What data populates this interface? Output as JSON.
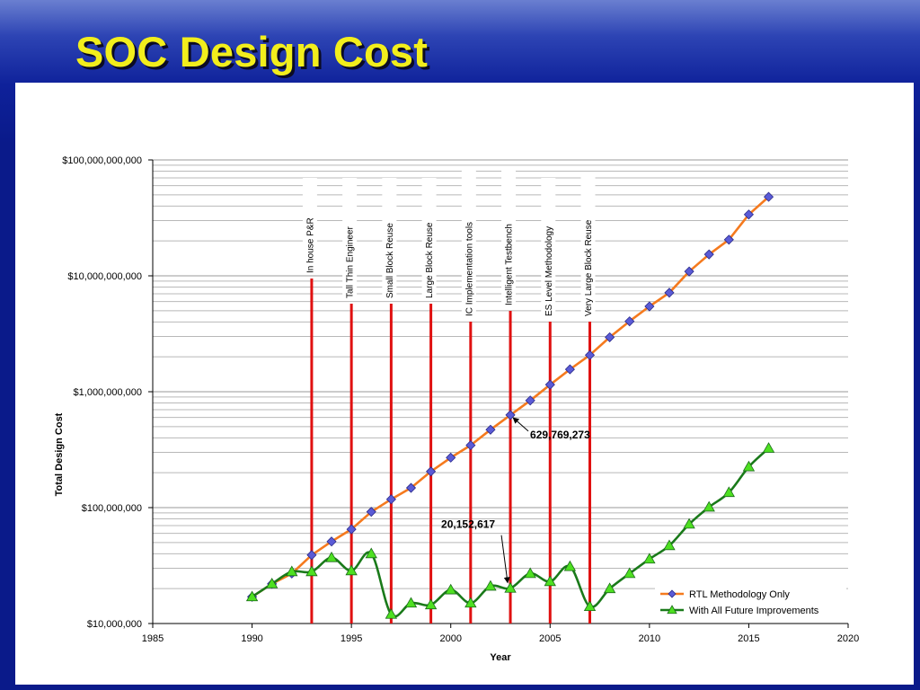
{
  "slide": {
    "title": "SOC Design Cost"
  },
  "colors": {
    "background": "#0a1a8a",
    "title": "#f2ee1c",
    "rtl_line": "#f57a1e",
    "rtl_marker": "#5b5bd6",
    "future_line": "#1a7a1a",
    "future_marker": "#4ee021",
    "milestone_line": "#e01010"
  },
  "chart_data": {
    "type": "line",
    "xlabel": "Year",
    "ylabel": "Total Design Cost",
    "xlim": [
      1985,
      2020
    ],
    "ylim": [
      10000000,
      100000000000
    ],
    "y_scale": "log",
    "x_ticks": [
      "1985",
      "1990",
      "1995",
      "2000",
      "2005",
      "2010",
      "2015",
      "2020"
    ],
    "y_ticks": [
      "$10,000,000",
      "$100,000,000",
      "$1,000,000,000",
      "$10,000,000,000",
      "$100,000,000,000"
    ],
    "grid": "horizontal",
    "legend_position": "bottom-right",
    "series": [
      {
        "name": "RTL Methodology Only",
        "marker": "diamond",
        "x": [
          1990,
          1991,
          1992,
          1993,
          1994,
          1995,
          1996,
          1997,
          1998,
          1999,
          2000,
          2001,
          2002,
          2003,
          2004,
          2005,
          2006,
          2007,
          2008,
          2009,
          2010,
          2011,
          2012,
          2013,
          2014,
          2015,
          2016
        ],
        "values": [
          17000000,
          22000000,
          27000000,
          39000000,
          51000000,
          65000000,
          92000000,
          118000000,
          148000000,
          205000000,
          270000000,
          345000000,
          470000000,
          629769273,
          840000000,
          1150000000,
          1560000000,
          2070000000,
          2950000000,
          4050000000,
          5450000000,
          7150000000,
          10900000000,
          15300000000,
          20500000000,
          33800000000,
          48000000000
        ]
      },
      {
        "name": "With All Future Improvements",
        "marker": "triangle",
        "x": [
          1990,
          1991,
          1992,
          1993,
          1994,
          1995,
          1996,
          1997,
          1998,
          1999,
          2000,
          2001,
          2002,
          2003,
          2004,
          2005,
          2006,
          2007,
          2008,
          2009,
          2010,
          2011,
          2012,
          2013,
          2014,
          2015,
          2016
        ],
        "values": [
          17000000,
          22000000,
          28000000,
          28000000,
          37000000,
          28500000,
          40000000,
          12000000,
          15000000,
          14500000,
          19500000,
          15000000,
          21000000,
          20152617,
          27000000,
          23000000,
          31000000,
          14000000,
          20000000,
          27000000,
          36000000,
          47000000,
          72000000,
          101000000,
          135000000,
          225000000,
          325000000
        ]
      }
    ],
    "milestones": [
      {
        "label": "In house P&R",
        "year": 1993
      },
      {
        "label": "Tall Thin Engineer",
        "year": 1995
      },
      {
        "label": "Small Block Reuse",
        "year": 1997
      },
      {
        "label": "Large Block Reuse",
        "year": 1999
      },
      {
        "label": "IC Implementation tools",
        "year": 2001
      },
      {
        "label": "Intelligent Testbench",
        "year": 2003
      },
      {
        "label": "ES Level Methodology",
        "year": 2005
      },
      {
        "label": "Very Large Block Reuse",
        "year": 2007
      }
    ],
    "data_labels": [
      {
        "text": "629,769,273",
        "year": 2003,
        "value": 629769273
      },
      {
        "text": "20,152,617",
        "year": 2003,
        "value": 20152617
      }
    ]
  }
}
